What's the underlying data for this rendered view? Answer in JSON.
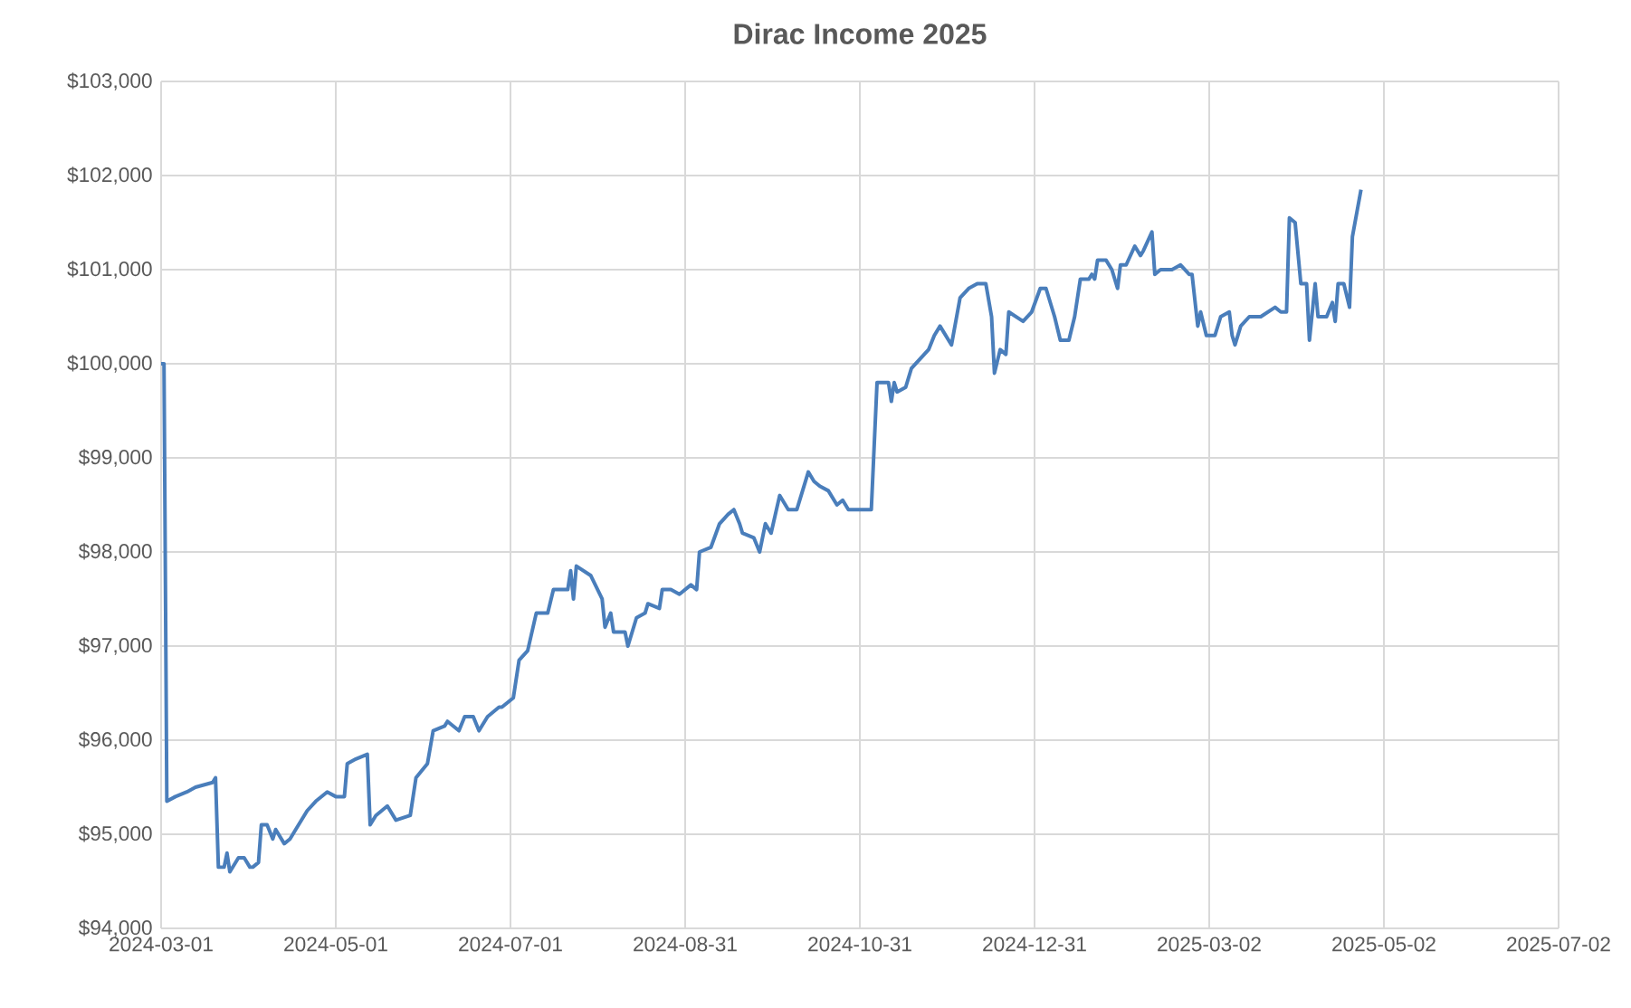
{
  "chart_data": {
    "type": "line",
    "title": "Dirac Income 2025",
    "color": "#4a7ebb",
    "grid": true,
    "marker": "none",
    "line_style": "solid",
    "xlim": [
      "2024-03-01",
      "2025-07-02"
    ],
    "xticks": [
      "2024-03-01",
      "2024-05-01",
      "2024-07-01",
      "2024-08-31",
      "2024-10-31",
      "2024-12-31",
      "2025-03-02",
      "2025-05-02",
      "2025-07-02"
    ],
    "ylim": [
      94000,
      103000
    ],
    "yticks": [
      {
        "value": 94000,
        "label": "$94,000"
      },
      {
        "value": 95000,
        "label": "$95,000"
      },
      {
        "value": 96000,
        "label": "$96,000"
      },
      {
        "value": 97000,
        "label": "$97,000"
      },
      {
        "value": 98000,
        "label": "$98,000"
      },
      {
        "value": 99000,
        "label": "$99,000"
      },
      {
        "value": 100000,
        "label": "$100,000"
      },
      {
        "value": 101000,
        "label": "$101,000"
      },
      {
        "value": 102000,
        "label": "$102,000"
      },
      {
        "value": 103000,
        "label": "$103,000"
      }
    ],
    "x": [
      "2024-03-01",
      "2024-03-02",
      "2024-03-03",
      "2024-03-06",
      "2024-03-10",
      "2024-03-13",
      "2024-03-19",
      "2024-03-20",
      "2024-03-21",
      "2024-03-23",
      "2024-03-24",
      "2024-03-25",
      "2024-03-28",
      "2024-03-30",
      "2024-04-01",
      "2024-04-02",
      "2024-04-04",
      "2024-04-05",
      "2024-04-07",
      "2024-04-09",
      "2024-04-10",
      "2024-04-13",
      "2024-04-15",
      "2024-04-17",
      "2024-04-21",
      "2024-04-24",
      "2024-04-28",
      "2024-05-01",
      "2024-05-04",
      "2024-05-05",
      "2024-05-08",
      "2024-05-12",
      "2024-05-13",
      "2024-05-15",
      "2024-05-19",
      "2024-05-22",
      "2024-05-27",
      "2024-05-29",
      "2024-06-02",
      "2024-06-04",
      "2024-06-08",
      "2024-06-09",
      "2024-06-13",
      "2024-06-15",
      "2024-06-18",
      "2024-06-20",
      "2024-06-23",
      "2024-06-27",
      "2024-06-28",
      "2024-07-02",
      "2024-07-04",
      "2024-07-07",
      "2024-07-10",
      "2024-07-14",
      "2024-07-16",
      "2024-07-21",
      "2024-07-22",
      "2024-07-23",
      "2024-07-24",
      "2024-07-29",
      "2024-08-02",
      "2024-08-03",
      "2024-08-05",
      "2024-08-06",
      "2024-08-10",
      "2024-08-11",
      "2024-08-14",
      "2024-08-17",
      "2024-08-18",
      "2024-08-22",
      "2024-08-23",
      "2024-08-26",
      "2024-08-29",
      "2024-09-02",
      "2024-09-04",
      "2024-09-05",
      "2024-09-09",
      "2024-09-12",
      "2024-09-15",
      "2024-09-17",
      "2024-09-19",
      "2024-09-20",
      "2024-09-24",
      "2024-09-26",
      "2024-09-28",
      "2024-09-30",
      "2024-10-03",
      "2024-10-06",
      "2024-10-09",
      "2024-10-13",
      "2024-10-15",
      "2024-10-17",
      "2024-10-20",
      "2024-10-23",
      "2024-10-25",
      "2024-10-27",
      "2024-10-31",
      "2024-11-04",
      "2024-11-06",
      "2024-11-10",
      "2024-11-11",
      "2024-11-12",
      "2024-11-13",
      "2024-11-16",
      "2024-11-18",
      "2024-11-21",
      "2024-11-24",
      "2024-11-26",
      "2024-11-28",
      "2024-12-02",
      "2024-12-05",
      "2024-12-08",
      "2024-12-11",
      "2024-12-14",
      "2024-12-16",
      "2024-12-17",
      "2024-12-19",
      "2024-12-21",
      "2024-12-22",
      "2024-12-27",
      "2024-12-30",
      "2025-01-02",
      "2025-01-04",
      "2025-01-07",
      "2025-01-09",
      "2025-01-12",
      "2025-01-14",
      "2025-01-16",
      "2025-01-19",
      "2025-01-20",
      "2025-01-21",
      "2025-01-22",
      "2025-01-25",
      "2025-01-27",
      "2025-01-29",
      "2025-01-30",
      "2025-02-01",
      "2025-02-04",
      "2025-02-06",
      "2025-02-07",
      "2025-02-10",
      "2025-02-11",
      "2025-02-13",
      "2025-02-17",
      "2025-02-20",
      "2025-02-23",
      "2025-02-24",
      "2025-02-26",
      "2025-02-27",
      "2025-03-01",
      "2025-03-04",
      "2025-03-06",
      "2025-03-09",
      "2025-03-10",
      "2025-03-11",
      "2025-03-13",
      "2025-03-16",
      "2025-03-20",
      "2025-03-25",
      "2025-03-27",
      "2025-03-29",
      "2025-03-30",
      "2025-04-01",
      "2025-04-03",
      "2025-04-05",
      "2025-04-06",
      "2025-04-08",
      "2025-04-09",
      "2025-04-12",
      "2025-04-14",
      "2025-04-15",
      "2025-04-16",
      "2025-04-18",
      "2025-04-20",
      "2025-04-21",
      "2025-04-24"
    ],
    "values": [
      100000,
      100000,
      95350,
      95400,
      95450,
      95500,
      95550,
      95600,
      94650,
      94650,
      94800,
      94600,
      94750,
      94750,
      94650,
      94650,
      94700,
      95100,
      95100,
      94950,
      95050,
      94900,
      94950,
      95050,
      95250,
      95350,
      95450,
      95400,
      95400,
      95750,
      95800,
      95850,
      95100,
      95200,
      95300,
      95150,
      95200,
      95600,
      95750,
      96100,
      96150,
      96200,
      96100,
      96250,
      96250,
      96100,
      96250,
      96350,
      96350,
      96450,
      96850,
      96950,
      97350,
      97350,
      97600,
      97600,
      97800,
      97500,
      97850,
      97750,
      97500,
      97200,
      97350,
      97150,
      97150,
      97000,
      97300,
      97350,
      97450,
      97400,
      97600,
      97600,
      97550,
      97650,
      97600,
      98000,
      98050,
      98300,
      98400,
      98450,
      98300,
      98200,
      98150,
      98000,
      98300,
      98200,
      98600,
      98450,
      98450,
      98850,
      98750,
      98700,
      98650,
      98500,
      98550,
      98450,
      98450,
      98450,
      99800,
      99800,
      99600,
      99800,
      99700,
      99750,
      99950,
      100050,
      100150,
      100300,
      100400,
      100200,
      100700,
      100800,
      100850,
      100850,
      100500,
      99900,
      100150,
      100100,
      100550,
      100450,
      100550,
      100800,
      100800,
      100500,
      100250,
      100250,
      100500,
      100900,
      100900,
      100950,
      100900,
      101100,
      101100,
      101000,
      100800,
      101050,
      101050,
      101250,
      101150,
      101200,
      101400,
      100950,
      101000,
      101000,
      101050,
      100950,
      100950,
      100400,
      100550,
      100300,
      100300,
      100500,
      100550,
      100300,
      100200,
      100400,
      100500,
      100500,
      100600,
      100550,
      100550,
      101550,
      101500,
      100850,
      100850,
      100250,
      100850,
      100500,
      100500,
      100650,
      100450,
      100850,
      100850,
      100600,
      101350,
      101850
    ]
  }
}
